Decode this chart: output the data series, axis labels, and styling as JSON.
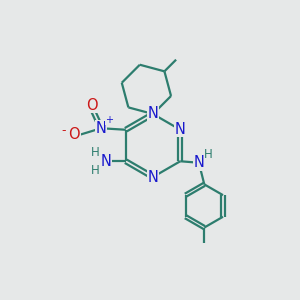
{
  "bg_color": "#e6e8e8",
  "bond_color": "#2d7d6e",
  "N_color": "#1818cc",
  "O_color": "#cc1818",
  "H_color": "#2d7d6e",
  "line_width": 1.6,
  "font_size_atom": 10.5,
  "font_size_small": 8.5,
  "xlim": [
    0,
    10
  ],
  "ylim": [
    0,
    10
  ]
}
